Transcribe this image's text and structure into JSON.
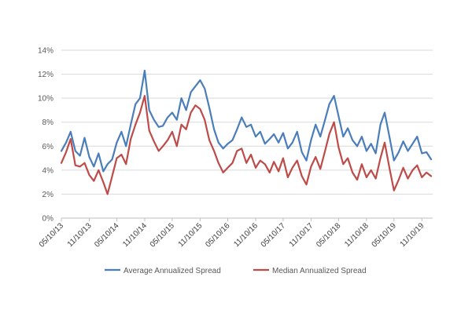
{
  "chart_data": {
    "type": "line",
    "title": "",
    "xlabel": "",
    "ylabel": "",
    "ylim": [
      0,
      14
    ],
    "y_ticks": [
      "0%",
      "2%",
      "4%",
      "6%",
      "8%",
      "10%",
      "12%",
      "14%"
    ],
    "x_range": [
      "2013-05-10",
      "2020-01-20"
    ],
    "x_ticks": [
      "05/10/13",
      "11/10/13",
      "05/10/14",
      "11/10/14",
      "05/10/15",
      "11/10/15",
      "05/10/16",
      "11/10/16",
      "05/10/17",
      "11/10/17",
      "05/10/18",
      "11/10/18",
      "05/10/19",
      "11/10/19"
    ],
    "grid": true,
    "legend_position": "bottom",
    "x": [
      "2013-05-10",
      "2013-06-10",
      "2013-07-10",
      "2013-08-10",
      "2013-09-10",
      "2013-10-10",
      "2013-11-10",
      "2013-12-10",
      "2014-01-10",
      "2014-02-10",
      "2014-03-10",
      "2014-04-10",
      "2014-05-10",
      "2014-06-10",
      "2014-07-10",
      "2014-08-10",
      "2014-09-10",
      "2014-10-10",
      "2014-11-10",
      "2014-12-10",
      "2015-01-10",
      "2015-02-10",
      "2015-03-10",
      "2015-04-10",
      "2015-05-10",
      "2015-06-10",
      "2015-07-10",
      "2015-08-10",
      "2015-09-10",
      "2015-10-10",
      "2015-11-10",
      "2015-12-10",
      "2016-01-10",
      "2016-02-10",
      "2016-03-10",
      "2016-04-10",
      "2016-05-10",
      "2016-06-10",
      "2016-07-10",
      "2016-08-10",
      "2016-09-10",
      "2016-10-10",
      "2016-11-10",
      "2016-12-10",
      "2017-01-10",
      "2017-02-10",
      "2017-03-10",
      "2017-04-10",
      "2017-05-10",
      "2017-06-10",
      "2017-07-10",
      "2017-08-10",
      "2017-09-10",
      "2017-10-10",
      "2017-11-10",
      "2017-12-10",
      "2018-01-10",
      "2018-02-10",
      "2018-03-10",
      "2018-04-10",
      "2018-05-10",
      "2018-06-10",
      "2018-07-10",
      "2018-08-10",
      "2018-09-10",
      "2018-10-10",
      "2018-11-10",
      "2018-12-10",
      "2019-01-10",
      "2019-02-10",
      "2019-03-10",
      "2019-04-10",
      "2019-05-10",
      "2019-06-10",
      "2019-07-10",
      "2019-08-10",
      "2019-09-10",
      "2019-10-10",
      "2019-11-10",
      "2019-12-10",
      "2020-01-10"
    ],
    "series": [
      {
        "name": "Average Annualized Spread",
        "color": "#4a7ebb",
        "values": [
          5.6,
          6.3,
          7.2,
          5.6,
          5.2,
          6.7,
          5.1,
          4.3,
          5.4,
          3.9,
          4.5,
          4.9,
          6.3,
          7.2,
          6.0,
          7.8,
          9.5,
          10.0,
          12.3,
          9.0,
          8.2,
          7.6,
          7.7,
          8.4,
          8.8,
          8.2,
          10.0,
          9.0,
          10.5,
          11.0,
          11.5,
          10.8,
          9.2,
          7.4,
          6.3,
          5.8,
          6.2,
          6.5,
          7.4,
          8.4,
          7.6,
          7.8,
          6.8,
          7.2,
          6.2,
          6.6,
          7.0,
          6.3,
          7.1,
          5.8,
          6.3,
          7.2,
          5.5,
          4.8,
          6.5,
          7.8,
          6.8,
          8.2,
          9.5,
          10.2,
          8.5,
          6.8,
          7.5,
          6.5,
          6.0,
          6.8,
          5.6,
          6.2,
          5.4,
          7.8,
          8.8,
          6.8,
          4.8,
          5.5,
          6.4,
          5.6,
          6.2,
          6.8,
          5.4,
          5.5,
          4.9
        ]
      },
      {
        "name": "Median Annualized Spread",
        "color": "#be4b48",
        "values": [
          4.6,
          5.5,
          6.6,
          4.4,
          4.3,
          4.6,
          3.6,
          3.1,
          4.0,
          3.0,
          2.0,
          3.5,
          5.0,
          5.3,
          4.5,
          6.6,
          7.8,
          8.8,
          10.2,
          7.3,
          6.4,
          5.6,
          6.0,
          6.5,
          7.2,
          6.0,
          7.8,
          7.4,
          8.8,
          9.4,
          9.1,
          8.2,
          6.5,
          5.6,
          4.6,
          3.8,
          4.2,
          4.6,
          5.6,
          5.8,
          4.6,
          5.3,
          4.2,
          4.8,
          4.5,
          3.8,
          4.7,
          3.9,
          5.0,
          3.4,
          4.2,
          4.8,
          3.5,
          2.8,
          4.3,
          5.1,
          4.1,
          5.6,
          7.0,
          8.0,
          5.9,
          4.5,
          5.0,
          3.8,
          3.2,
          4.5,
          3.4,
          4.0,
          3.3,
          5.0,
          6.3,
          4.2,
          2.3,
          3.2,
          4.2,
          3.3,
          4.0,
          4.4,
          3.4,
          3.8,
          3.5
        ]
      }
    ]
  }
}
